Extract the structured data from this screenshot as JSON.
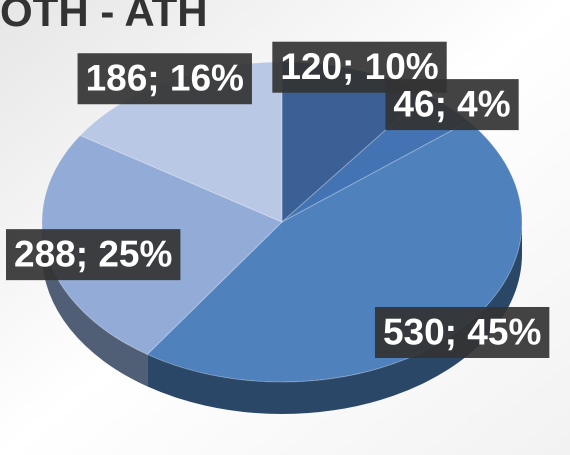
{
  "chart_data": {
    "type": "pie",
    "title": "OTH - ATH",
    "categories": [
      null,
      null,
      null,
      null,
      null
    ],
    "values": [
      120,
      46,
      530,
      288,
      186
    ],
    "value_labels": [
      "120; 10%",
      "46; 4%",
      "530; 45%",
      "288; 25%",
      "186; 16%"
    ],
    "colors": [
      "#3b6096",
      "#4373b2",
      "#4f81bd",
      "#93acd7",
      "#b9c9e5"
    ]
  }
}
